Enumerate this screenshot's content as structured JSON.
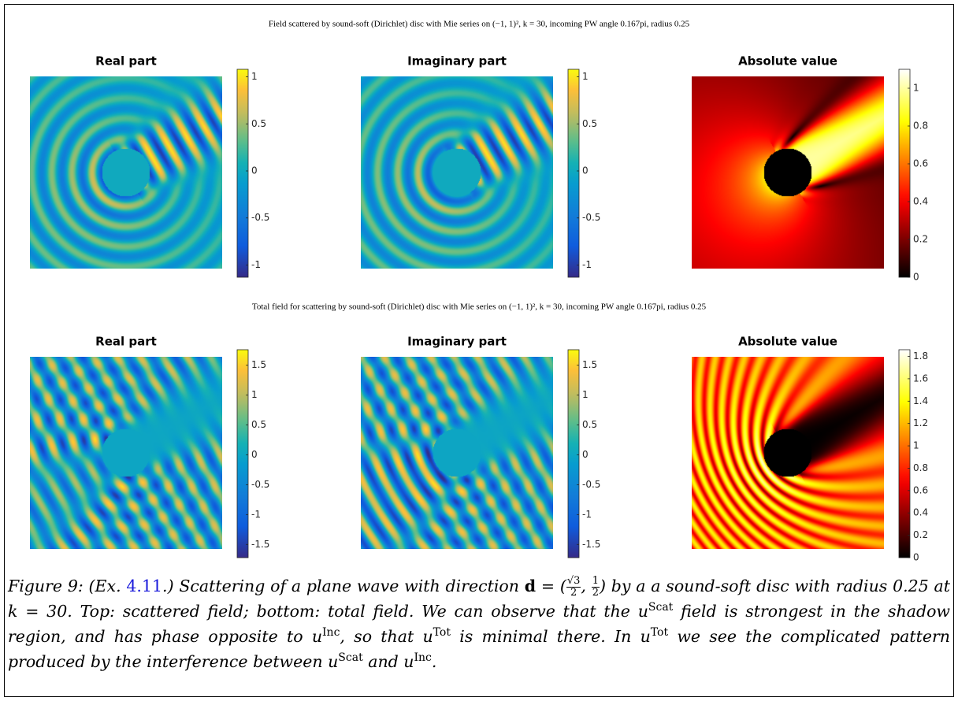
{
  "figures": [
    {
      "title": "Field scattered by sound-soft (Dirichlet) disc with Mie series on (−1, 1)², k = 30, incoming PW angle 0.167pi, radius 0.25",
      "panels": [
        {
          "title": "Real part",
          "clim": [
            -1.13,
            1.08
          ],
          "ticks": [
            1,
            0.5,
            0,
            -0.5,
            -1
          ]
        },
        {
          "title": "Imaginary part",
          "clim": [
            -1.13,
            1.08
          ],
          "ticks": [
            1,
            0.5,
            0,
            -0.5,
            -1
          ]
        },
        {
          "title": "Absolute value",
          "clim": [
            0,
            1.1
          ],
          "ticks": [
            1,
            0.8,
            0.6,
            0.4,
            0.2,
            0
          ]
        }
      ]
    },
    {
      "title": "Total field for scattering by sound-soft (Dirichlet) disc with Mie series on (−1, 1)², k = 30, incoming PW angle 0.167pi, radius 0.25",
      "panels": [
        {
          "title": "Real part",
          "clim": [
            -1.72,
            1.76
          ],
          "ticks": [
            1.5,
            1,
            0.5,
            0,
            -0.5,
            -1,
            -1.5
          ]
        },
        {
          "title": "Imaginary part",
          "clim": [
            -1.72,
            1.76
          ],
          "ticks": [
            1.5,
            1,
            0.5,
            0,
            -0.5,
            -1,
            -1.5
          ]
        },
        {
          "title": "Absolute value",
          "clim": [
            0,
            1.86
          ],
          "ticks": [
            1.8,
            1.6,
            1.4,
            1.2,
            1,
            0.8,
            0.6,
            0.4,
            0.2,
            0
          ]
        }
      ]
    }
  ],
  "caption": [
    "Figure 9: (Ex. ",
    "4.11",
    ".) Scattering of a plane wave with direction ",
    "d",
    " = (",
    "√3",
    "2",
    ", ",
    "1",
    "2",
    ") by a a sound-soft disc with radius 0.25 at ",
    "k",
    " = 30. Top: scattered field; bottom: total field. We can observe that the ",
    "u",
    "Scat",
    " field is strongest in the shadow region, and has phase opposite to ",
    "u",
    "Inc",
    ", so that ",
    "u",
    "Tot",
    " is minimal there. In ",
    "u",
    "Tot",
    " we see the complicated pattern produced by the interference between ",
    "u",
    "Scat",
    " and ",
    "u",
    "Inc",
    "."
  ]
}
